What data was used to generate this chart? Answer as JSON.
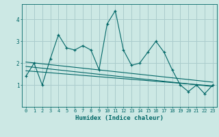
{
  "xlabel": "Humidex (Indice chaleur)",
  "bg_color": "#cce8e4",
  "grid_color": "#aacccc",
  "line_color": "#006666",
  "xlim": [
    -0.5,
    23.5
  ],
  "ylim": [
    0.0,
    4.7
  ],
  "yticks": [
    1,
    2,
    3,
    4
  ],
  "xticks": [
    0,
    1,
    2,
    3,
    4,
    5,
    6,
    7,
    8,
    9,
    10,
    11,
    12,
    13,
    14,
    15,
    16,
    17,
    18,
    19,
    20,
    21,
    22,
    23
  ],
  "main_y": [
    1.4,
    2.0,
    1.0,
    2.2,
    3.3,
    2.7,
    2.6,
    2.8,
    2.6,
    1.7,
    3.8,
    4.4,
    2.6,
    1.9,
    2.0,
    2.5,
    3.0,
    2.5,
    1.7,
    1.0,
    0.7,
    1.0,
    0.6,
    1.0
  ],
  "trend1_y": [
    2.05,
    2.01,
    1.97,
    1.93,
    1.89,
    1.85,
    1.81,
    1.77,
    1.73,
    1.69,
    1.65,
    1.61,
    1.57,
    1.53,
    1.49,
    1.45,
    1.41,
    1.37,
    1.33,
    1.29,
    1.25,
    1.21,
    1.17,
    1.13
  ],
  "trend2_y": [
    1.85,
    1.81,
    1.77,
    1.73,
    1.69,
    1.65,
    1.61,
    1.57,
    1.53,
    1.49,
    1.45,
    1.41,
    1.37,
    1.33,
    1.29,
    1.25,
    1.21,
    1.17,
    1.13,
    1.09,
    1.05,
    1.01,
    0.97,
    0.93
  ],
  "trend3_y": [
    1.65,
    1.62,
    1.59,
    1.56,
    1.53,
    1.5,
    1.47,
    1.44,
    1.41,
    1.38,
    1.35,
    1.32,
    1.29,
    1.26,
    1.23,
    1.2,
    1.17,
    1.14,
    1.11,
    1.08,
    1.05,
    1.02,
    0.99,
    0.96
  ]
}
